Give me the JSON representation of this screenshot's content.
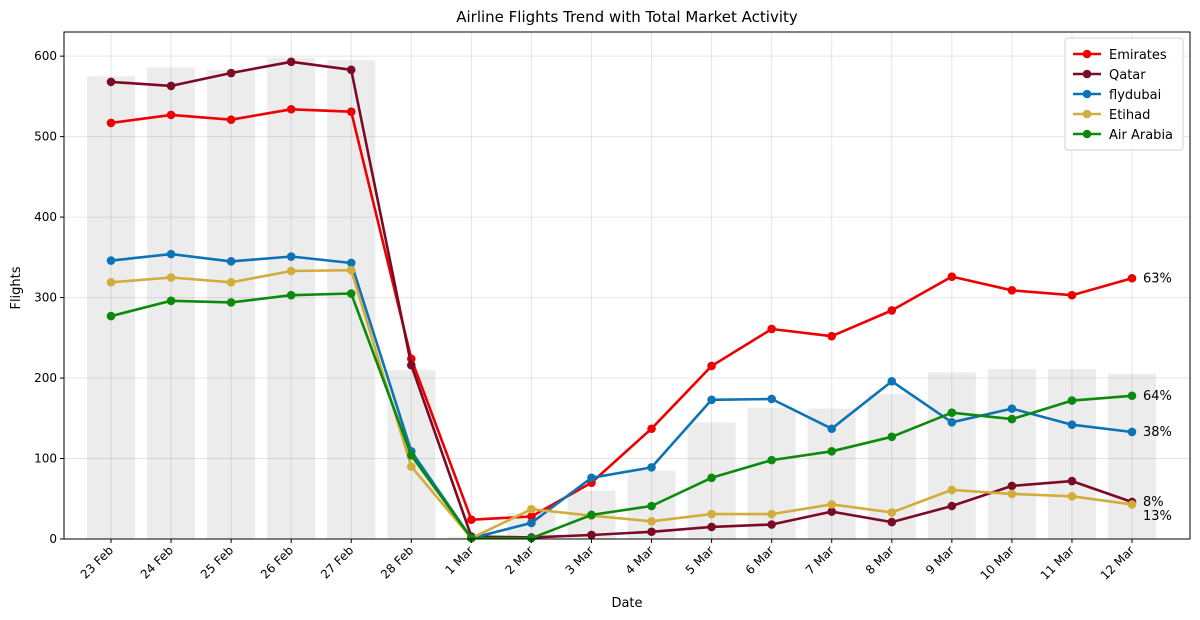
{
  "chart_data": {
    "type": "line",
    "title": "Airline Flights Trend with Total Market Activity",
    "xlabel": "Date",
    "ylabel": "Flights",
    "ylim": [
      0,
      630
    ],
    "yticks": [
      0,
      100,
      200,
      300,
      400,
      500,
      600
    ],
    "grid": true,
    "legend_position": "top-right",
    "categories": [
      "23 Feb",
      "24 Feb",
      "25 Feb",
      "26 Feb",
      "27 Feb",
      "28 Feb",
      "1 Mar",
      "2 Mar",
      "3 Mar",
      "4 Mar",
      "5 Mar",
      "6 Mar",
      "7 Mar",
      "8 Mar",
      "9 Mar",
      "10 Mar",
      "11 Mar",
      "12 Mar"
    ],
    "total_market_bars": [
      575,
      586,
      583,
      598,
      595,
      210,
      3,
      32,
      60,
      85,
      145,
      163,
      162,
      180,
      207,
      211,
      211,
      205
    ],
    "series": [
      {
        "name": "Emirates",
        "color": "#ee0000",
        "end_label": "63%",
        "values": [
          517,
          527,
          521,
          534,
          531,
          224,
          24,
          28,
          70,
          137,
          215,
          261,
          252,
          284,
          326,
          309,
          303,
          324
        ]
      },
      {
        "name": "Qatar",
        "color": "#7c0a25",
        "end_label": "8%",
        "values": [
          568,
          563,
          579,
          593,
          583,
          216,
          3,
          2,
          5,
          9,
          15,
          18,
          34,
          21,
          41,
          66,
          72,
          46
        ]
      },
      {
        "name": "flydubai",
        "color": "#0b73b6",
        "end_label": "38%",
        "values": [
          346,
          354,
          345,
          351,
          343,
          109,
          1,
          20,
          76,
          89,
          173,
          174,
          137,
          196,
          145,
          162,
          142,
          133
        ]
      },
      {
        "name": "Etihad",
        "color": "#d2ad3c",
        "end_label": "13%",
        "values": [
          319,
          325,
          319,
          333,
          334,
          90,
          1,
          37,
          29,
          22,
          31,
          31,
          43,
          33,
          61,
          56,
          53,
          43
        ]
      },
      {
        "name": "Air Arabia",
        "color": "#0b8a0b",
        "end_label": "64%",
        "values": [
          277,
          296,
          294,
          303,
          305,
          104,
          1,
          1,
          30,
          41,
          76,
          98,
          109,
          127,
          157,
          149,
          172,
          178
        ]
      }
    ]
  }
}
